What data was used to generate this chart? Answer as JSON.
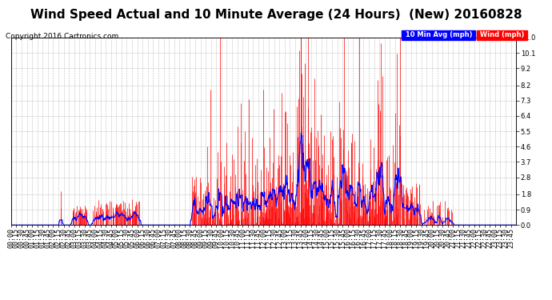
{
  "title": "Wind Speed Actual and 10 Minute Average (24 Hours)  (New) 20160828",
  "copyright": "Copyright 2016 Cartronics.com",
  "legend_10min": "10 Min Avg (mph)",
  "legend_wind": "Wind (mph)",
  "yticks": [
    0.0,
    0.9,
    1.8,
    2.8,
    3.7,
    4.6,
    5.5,
    6.4,
    7.3,
    8.2,
    9.2,
    10.1,
    11.0
  ],
  "ymax": 11.0,
  "ymin": 0.0,
  "background_color": "#ffffff",
  "grid_color": "#aaaaaa",
  "wind_color": "#ff0000",
  "avg_color": "#0000ff",
  "title_fontsize": 11,
  "copyright_fontsize": 6.5,
  "axis_fontsize": 6,
  "total_minutes": 1440
}
